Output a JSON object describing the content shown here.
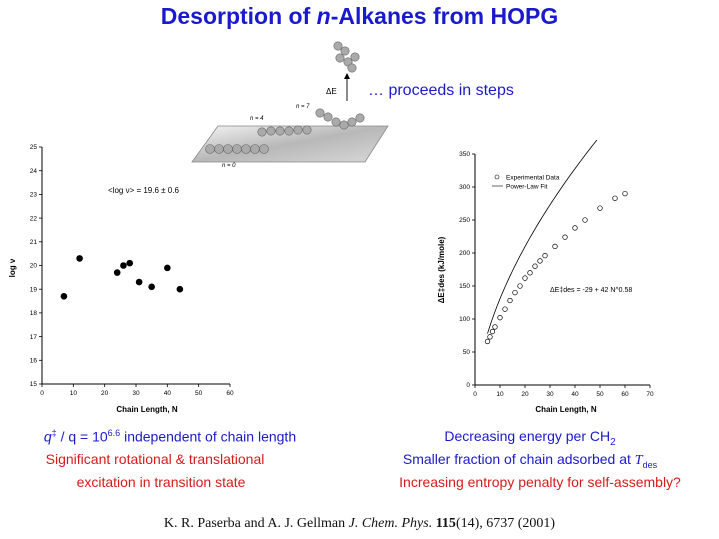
{
  "title": {
    "prefix": "Desorption of ",
    "italic": "n",
    "suffix": "-Alkanes from HOPG"
  },
  "steps_text": "… proceeds in steps",
  "schematic": {
    "delta_e_label": "ΔE",
    "n_labels": [
      "n = 7",
      "n = 4",
      "n = 0"
    ]
  },
  "left_captions": {
    "line1_q": "q",
    "line1_dagger": "‡",
    "line1_mid": " / q = 10",
    "line1_exp": "6.6",
    "line1_rest": " independent of chain length",
    "line2": "Significant rotational & translational",
    "line3": "excitation in transition state"
  },
  "right_captions": {
    "line1_main": "Decreasing energy per CH",
    "line1_sub": "2",
    "line2_main": "Smaller fraction of chain adsorbed at ",
    "line2_T": "T",
    "line2_sub": "des",
    "line3": "Increasing entropy penalty for self-assembly?"
  },
  "citation": {
    "authors": "K. R. Paserba and A. J. Gellman ",
    "journal": "J. Chem. Phys.",
    "volume": "115",
    "rest": "(14), 6737 (2001)"
  },
  "colors": {
    "blue": "#1a1acc",
    "red": "#d81a1a"
  },
  "chart_data": [
    {
      "type": "scatter",
      "title": "",
      "xlabel": "Chain Length, N",
      "ylabel": "log ν",
      "xlim": [
        0,
        60
      ],
      "ylim": [
        15,
        25
      ],
      "xticks": [
        0,
        10,
        20,
        30,
        40,
        50,
        60
      ],
      "yticks": [
        15,
        16,
        17,
        18,
        19,
        20,
        21,
        22,
        23,
        24,
        25
      ],
      "annotation": "<log ν> = 19.6 ± 0.6",
      "series": [
        {
          "x": [
            7,
            12,
            24,
            26,
            28,
            31,
            35,
            40,
            44
          ],
          "y": [
            18.7,
            20.3,
            19.7,
            20.0,
            20.1,
            19.3,
            19.1,
            19.9,
            19.0
          ]
        }
      ],
      "grid": false,
      "legend": "none"
    },
    {
      "type": "scatter",
      "title": "",
      "xlabel": "Chain Length, N",
      "ylabel": "ΔE‡des (kJ/mole)",
      "xlim": [
        0,
        70
      ],
      "ylim": [
        0,
        350
      ],
      "xticks": [
        0,
        10,
        20,
        30,
        40,
        50,
        60,
        70
      ],
      "yticks": [
        0,
        50,
        100,
        150,
        200,
        250,
        300,
        350
      ],
      "annotation": "ΔE‡des = -29 + 42 N^0.58",
      "series": [
        {
          "name": "Experimental Data",
          "x": [
            5,
            6,
            7,
            8,
            10,
            12,
            14,
            16,
            18,
            20,
            22,
            24,
            26,
            28,
            32,
            36,
            40,
            44,
            50,
            56,
            60
          ],
          "y": [
            66,
            73,
            81,
            88,
            102,
            115,
            128,
            140,
            150,
            162,
            170,
            180,
            188,
            196,
            210,
            224,
            238,
            250,
            268,
            283,
            290
          ]
        },
        {
          "name": "Power-Law Fit",
          "fit": {
            "a": -29,
            "b": 42,
            "p": 0.58
          },
          "x_range": [
            5,
            60
          ]
        }
      ],
      "legend": "top-left",
      "grid": false
    }
  ]
}
